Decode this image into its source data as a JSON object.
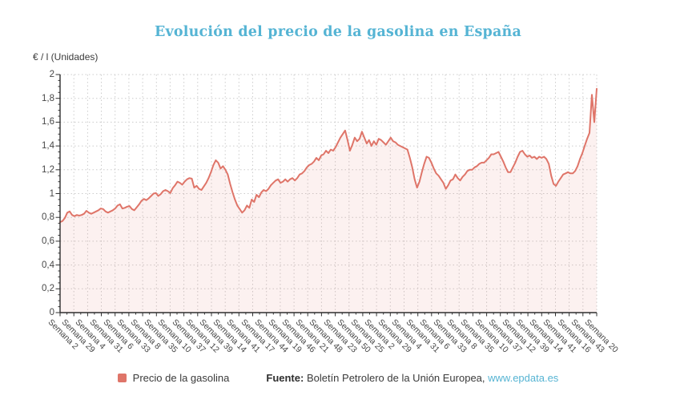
{
  "title": "Evolución del precio de la gasolina en España",
  "y_axis_unit_label": "€ / l (Unidades)",
  "legend": {
    "series_label": "Precio de la gasolina"
  },
  "source": {
    "prefix": "Fuente:",
    "text": " Boletín Petrolero de la Unión Europea, ",
    "link": "www.epdata.es"
  },
  "colors": {
    "accent_blue": "#56b4d3",
    "line": "#df7569",
    "area_fill": "rgba(223,117,105,0.10)",
    "axis": "#2f2f2f",
    "grid": "#cccccc",
    "text": "#3a3a3a"
  },
  "chart_data": {
    "type": "area",
    "title": "Evolución del precio de la gasolina en España",
    "xlabel": "",
    "ylabel": "€ / l (Unidades)",
    "ylim": [
      0,
      2
    ],
    "y_tick_labels": [
      "0",
      "0,2",
      "0,4",
      "0,6",
      "0,8",
      "1",
      "1,2",
      "1,4",
      "1,6",
      "1,8",
      "2"
    ],
    "grid": true,
    "legend_position": "bottom",
    "x_tick_labels": [
      "Semana 2",
      "Semana 29",
      "Semana 4",
      "Semana 31",
      "Semana 6",
      "Semana 33",
      "Semana 8",
      "Semana 35",
      "Semana 10",
      "Semana 37",
      "Semana 12",
      "Semana 39",
      "Semana 14",
      "Semana 41",
      "Semana 17",
      "Semana 44",
      "Semana 19",
      "Semana 46",
      "Semana 21",
      "Semana 48",
      "Semana 23",
      "Semana 50",
      "Semana 25",
      "Semana 2",
      "Semana 29",
      "Semana 4",
      "Semana 31",
      "Semana 6",
      "Semana 33",
      "Semana 8",
      "Semana 35",
      "Semana 10",
      "Semana 37",
      "Semana 12",
      "Semana 39",
      "Semana 14",
      "Semana 41",
      "Semana 16",
      "Semana 43",
      "Semana 20"
    ],
    "series": [
      {
        "name": "Precio de la gasolina",
        "unit": "€/l",
        "values": [
          0.76,
          0.77,
          0.795,
          0.84,
          0.85,
          0.82,
          0.81,
          0.82,
          0.815,
          0.82,
          0.83,
          0.855,
          0.84,
          0.83,
          0.84,
          0.85,
          0.86,
          0.875,
          0.87,
          0.85,
          0.84,
          0.85,
          0.86,
          0.875,
          0.9,
          0.91,
          0.875,
          0.88,
          0.89,
          0.895,
          0.87,
          0.86,
          0.885,
          0.91,
          0.94,
          0.955,
          0.945,
          0.96,
          0.98,
          1.0,
          1.005,
          0.98,
          0.995,
          1.02,
          1.03,
          1.02,
          1.005,
          1.045,
          1.07,
          1.1,
          1.09,
          1.075,
          1.1,
          1.12,
          1.13,
          1.125,
          1.05,
          1.065,
          1.04,
          1.03,
          1.06,
          1.09,
          1.13,
          1.18,
          1.24,
          1.28,
          1.26,
          1.21,
          1.23,
          1.2,
          1.16,
          1.08,
          1.01,
          0.95,
          0.9,
          0.87,
          0.84,
          0.86,
          0.9,
          0.88,
          0.95,
          0.93,
          0.99,
          0.97,
          1.01,
          1.03,
          1.02,
          1.04,
          1.07,
          1.09,
          1.11,
          1.12,
          1.09,
          1.1,
          1.12,
          1.1,
          1.12,
          1.13,
          1.11,
          1.13,
          1.16,
          1.17,
          1.19,
          1.22,
          1.24,
          1.25,
          1.27,
          1.3,
          1.28,
          1.32,
          1.33,
          1.36,
          1.34,
          1.37,
          1.36,
          1.39,
          1.43,
          1.47,
          1.5,
          1.53,
          1.45,
          1.36,
          1.41,
          1.47,
          1.44,
          1.46,
          1.52,
          1.47,
          1.42,
          1.45,
          1.4,
          1.44,
          1.41,
          1.46,
          1.45,
          1.43,
          1.41,
          1.44,
          1.47,
          1.44,
          1.43,
          1.41,
          1.4,
          1.39,
          1.38,
          1.37,
          1.3,
          1.22,
          1.12,
          1.05,
          1.1,
          1.18,
          1.25,
          1.31,
          1.3,
          1.26,
          1.21,
          1.17,
          1.15,
          1.12,
          1.09,
          1.04,
          1.07,
          1.11,
          1.12,
          1.16,
          1.13,
          1.11,
          1.14,
          1.16,
          1.19,
          1.2,
          1.2,
          1.22,
          1.23,
          1.25,
          1.26,
          1.26,
          1.28,
          1.3,
          1.33,
          1.33,
          1.34,
          1.35,
          1.31,
          1.27,
          1.22,
          1.18,
          1.18,
          1.22,
          1.26,
          1.31,
          1.35,
          1.36,
          1.33,
          1.31,
          1.32,
          1.3,
          1.31,
          1.29,
          1.31,
          1.3,
          1.31,
          1.29,
          1.25,
          1.15,
          1.08,
          1.065,
          1.1,
          1.13,
          1.16,
          1.17,
          1.18,
          1.17,
          1.17,
          1.19,
          1.23,
          1.29,
          1.34,
          1.4,
          1.46,
          1.51,
          1.83,
          1.6,
          1.88
        ]
      }
    ]
  }
}
